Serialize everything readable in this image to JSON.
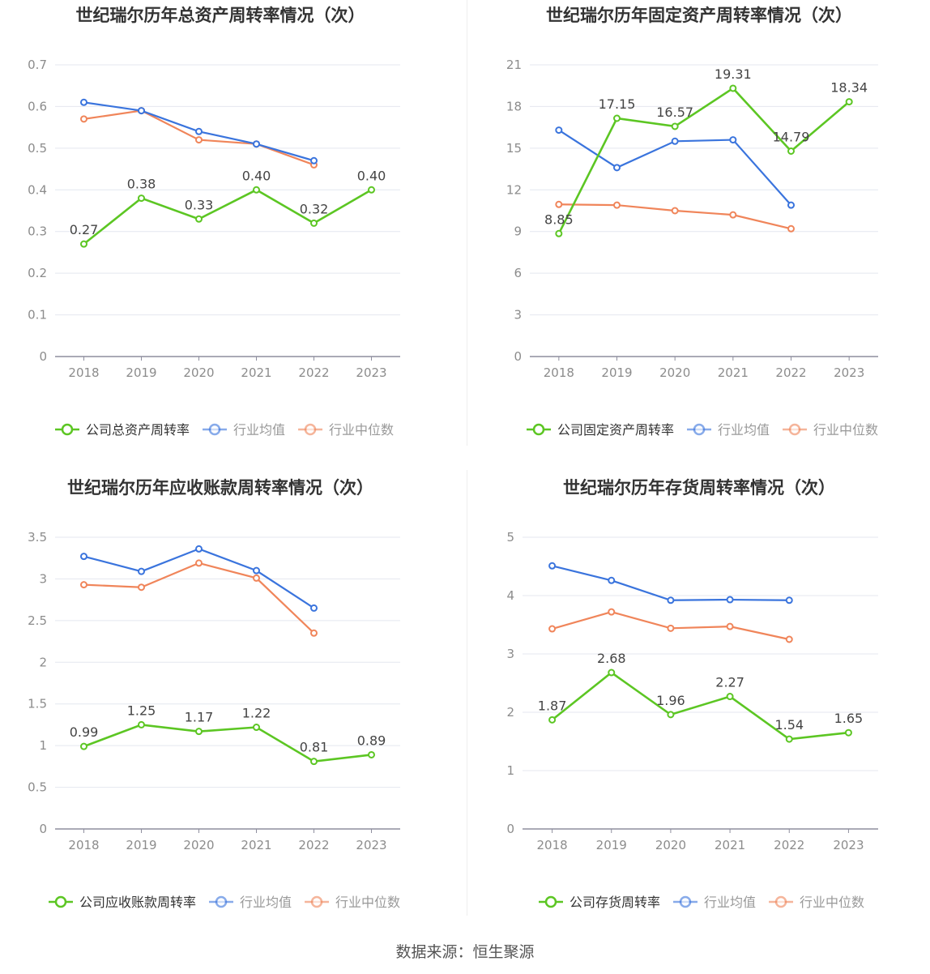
{
  "source": "数据来源：恒生聚源",
  "legend_labels": {
    "avg": "行业均值",
    "median": "行业中位数"
  },
  "colors": {
    "company": "#5cc623",
    "avg": "#3a74dd",
    "median": "#f0855a",
    "grid": "#e4e7ef",
    "axis": "#8e8e9e",
    "tick": "#8c8c8c",
    "title": "#333333"
  },
  "chart_data": [
    {
      "type": "line",
      "title": "世纪瑞尔历年总资产周转率情况（次）",
      "categories": [
        "2018",
        "2019",
        "2020",
        "2021",
        "2022",
        "2023"
      ],
      "y_ticks": [
        "0",
        "0.1",
        "0.2",
        "0.3",
        "0.4",
        "0.5",
        "0.6",
        "0.7"
      ],
      "ylim": [
        0,
        0.7
      ],
      "series": [
        {
          "name": "公司总资产周转率",
          "role": "company",
          "values": [
            0.27,
            0.38,
            0.33,
            0.4,
            0.32,
            0.4
          ],
          "labels": [
            "0.27",
            "0.38",
            "0.33",
            "0.40",
            "0.32",
            "0.40"
          ]
        },
        {
          "name": "行业均值",
          "role": "avg",
          "values": [
            0.61,
            0.59,
            0.54,
            0.51,
            0.47,
            null
          ]
        },
        {
          "name": "行业中位数",
          "role": "median",
          "values": [
            0.57,
            0.59,
            0.52,
            0.51,
            0.46,
            null
          ]
        }
      ]
    },
    {
      "type": "line",
      "title": "世纪瑞尔历年固定资产周转率情况（次）",
      "categories": [
        "2018",
        "2019",
        "2020",
        "2021",
        "2022",
        "2023"
      ],
      "y_ticks": [
        "0",
        "3",
        "6",
        "9",
        "12",
        "15",
        "18",
        "21"
      ],
      "ylim": [
        0,
        21
      ],
      "series": [
        {
          "name": "公司固定资产周转率",
          "role": "company",
          "values": [
            8.85,
            17.15,
            16.57,
            19.31,
            14.79,
            18.34
          ],
          "labels": [
            "8.85",
            "17.15",
            "16.57",
            "19.31",
            "14.79",
            "18.34"
          ]
        },
        {
          "name": "行业均值",
          "role": "avg",
          "values": [
            16.3,
            13.6,
            15.5,
            15.6,
            10.9,
            null
          ]
        },
        {
          "name": "行业中位数",
          "role": "median",
          "values": [
            10.95,
            10.9,
            10.5,
            10.2,
            9.2,
            null
          ]
        }
      ]
    },
    {
      "type": "line",
      "title": "世纪瑞尔历年应收账款周转率情况（次）",
      "categories": [
        "2018",
        "2019",
        "2020",
        "2021",
        "2022",
        "2023"
      ],
      "y_ticks": [
        "0",
        "0.5",
        "1",
        "1.5",
        "2",
        "2.5",
        "3",
        "3.5"
      ],
      "ylim": [
        0,
        3.5
      ],
      "series": [
        {
          "name": "公司应收账款周转率",
          "role": "company",
          "values": [
            0.99,
            1.25,
            1.17,
            1.22,
            0.81,
            0.89
          ],
          "labels": [
            "0.99",
            "1.25",
            "1.17",
            "1.22",
            "0.81",
            "0.89"
          ]
        },
        {
          "name": "行业均值",
          "role": "avg",
          "values": [
            3.27,
            3.09,
            3.36,
            3.1,
            2.65,
            null
          ]
        },
        {
          "name": "行业中位数",
          "role": "median",
          "values": [
            2.93,
            2.9,
            3.19,
            3.01,
            2.35,
            null
          ]
        }
      ]
    },
    {
      "type": "line",
      "title": "世纪瑞尔历年存货周转率情况（次）",
      "categories": [
        "2018",
        "2019",
        "2020",
        "2021",
        "2022",
        "2023"
      ],
      "y_ticks": [
        "0",
        "1",
        "2",
        "3",
        "4",
        "5"
      ],
      "ylim": [
        0,
        5
      ],
      "series": [
        {
          "name": "公司存货周转率",
          "role": "company",
          "values": [
            1.87,
            2.68,
            1.96,
            2.27,
            1.54,
            1.65
          ],
          "labels": [
            "1.87",
            "2.68",
            "1.96",
            "2.27",
            "1.54",
            "1.65"
          ]
        },
        {
          "name": "行业均值",
          "role": "avg",
          "values": [
            4.51,
            4.26,
            3.92,
            3.93,
            3.92,
            null
          ]
        },
        {
          "name": "行业中位数",
          "role": "median",
          "values": [
            3.43,
            3.72,
            3.44,
            3.47,
            3.25,
            null
          ]
        }
      ]
    }
  ]
}
